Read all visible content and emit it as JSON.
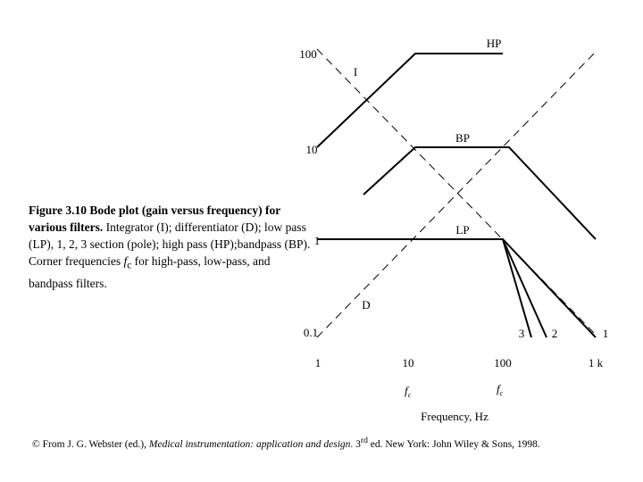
{
  "axis": {
    "y_labels": [
      "100",
      "10",
      "1",
      "0.1"
    ],
    "x_labels": [
      "1",
      "10",
      "100",
      "1 k"
    ],
    "x_title": "Frequency, Hz",
    "corner_symbol": "f",
    "corner_subscript": "c"
  },
  "curve_labels": {
    "hp": "HP",
    "i": "I",
    "bp": "BP",
    "lp": "LP",
    "d": "D",
    "pole3": "3",
    "pole2": "2",
    "pole1": "1"
  },
  "caption": {
    "bold": "Figure 3.10 Bode plot (gain versus frequency) for various filters.",
    "text": " Integrator (I); differentiator (D); low pass (LP), 1, 2, 3 section (pole); high pass (HP);bandpass (BP). Corner frequencies ",
    "symbol": "f",
    "subscript": "c",
    "tail": " for high-pass, low-pass, and bandpass filters."
  },
  "footer": {
    "lead": "© From J. G. Webster (ed.), ",
    "book": "Medical instrumentation: application and design",
    "edition": ". 3",
    "sup": "rd",
    "tail": " ed. New York: John Wiley & Sons, 1998."
  }
}
